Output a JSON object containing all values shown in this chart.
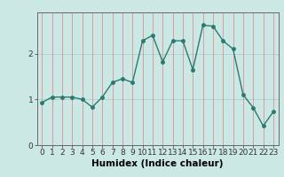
{
  "title": "",
  "xlabel": "Humidex (Indice chaleur)",
  "ylabel": "",
  "x": [
    0,
    1,
    2,
    3,
    4,
    5,
    6,
    7,
    8,
    9,
    10,
    11,
    12,
    13,
    14,
    15,
    16,
    17,
    18,
    19,
    20,
    21,
    22,
    23
  ],
  "y": [
    0.93,
    1.05,
    1.05,
    1.05,
    1.0,
    0.83,
    1.05,
    1.37,
    1.45,
    1.37,
    2.28,
    2.4,
    1.82,
    2.28,
    2.28,
    1.65,
    2.62,
    2.6,
    2.28,
    2.1,
    1.1,
    0.82,
    0.42,
    0.73
  ],
  "line_color": "#2a7a6f",
  "marker": "o",
  "marker_size": 2.5,
  "linewidth": 1.0,
  "background_color": "#cce8e4",
  "grid_color_v": "#e08080",
  "grid_color_h": "#b0d0cc",
  "xlim": [
    -0.5,
    23.5
  ],
  "ylim": [
    0,
    2.9
  ],
  "yticks": [
    0,
    1,
    2
  ],
  "xticks": [
    0,
    1,
    2,
    3,
    4,
    5,
    6,
    7,
    8,
    9,
    10,
    11,
    12,
    13,
    14,
    15,
    16,
    17,
    18,
    19,
    20,
    21,
    22,
    23
  ],
  "tick_fontsize": 6.5,
  "xlabel_fontsize": 7.5
}
